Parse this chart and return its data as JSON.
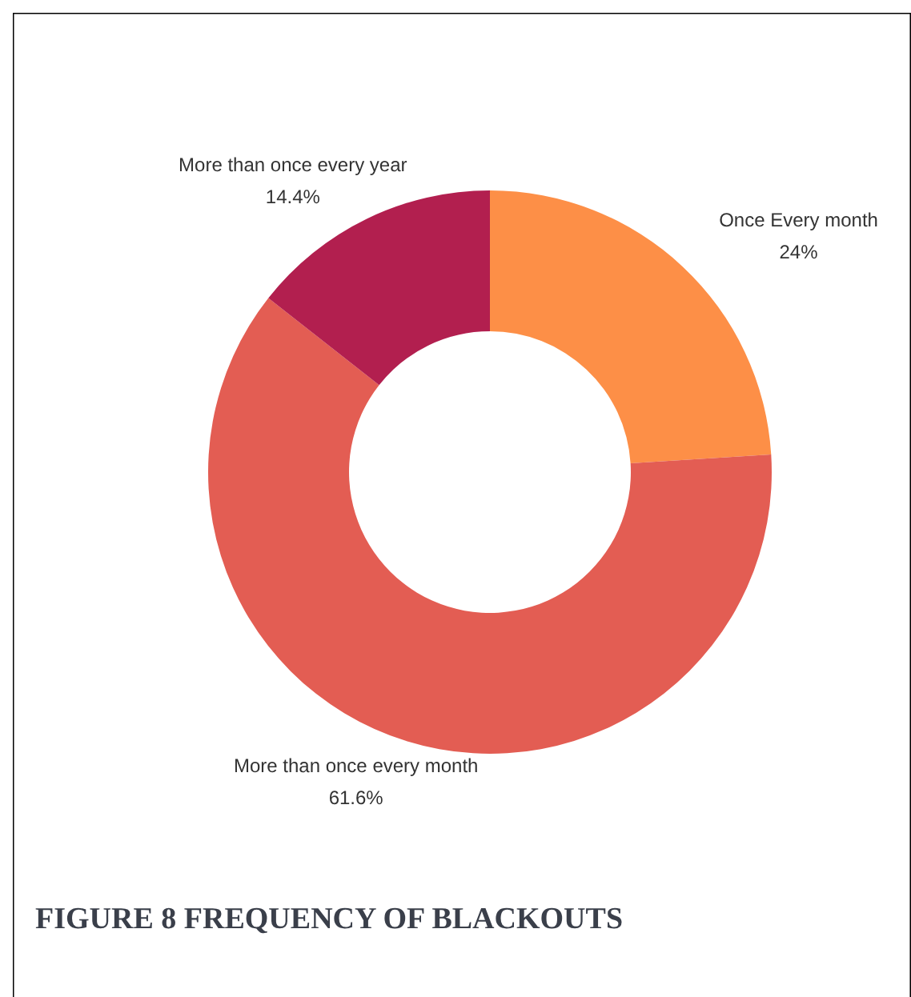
{
  "chart_data": {
    "type": "donut",
    "categories": [
      "Once Every month",
      "More than once every month",
      "More than once every year"
    ],
    "values": [
      24,
      61.6,
      14.4
    ],
    "colors": [
      "#fd8f47",
      "#e35d53",
      "#b21f4f"
    ],
    "value_labels": [
      "24%",
      "61.6%",
      "14.4%"
    ],
    "annotations": [
      "FIGURE 8 FREQUENCY OF BLACKOUTS"
    ]
  }
}
